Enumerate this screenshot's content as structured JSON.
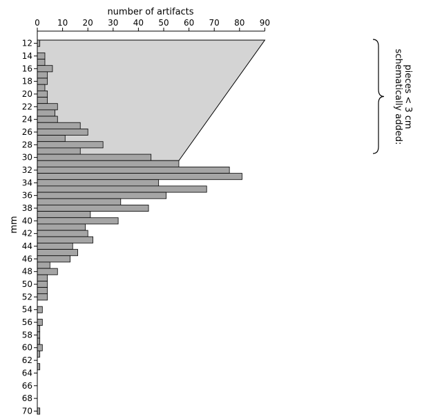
{
  "chart_data": {
    "type": "bar",
    "orientation": "horizontal",
    "xlabel": "number of artifacts",
    "ylabel": "mm",
    "xlim": [
      0,
      90
    ],
    "x_ticks": [
      0,
      10,
      20,
      30,
      40,
      50,
      60,
      70,
      80,
      90
    ],
    "x_axis_position": "top",
    "y_ticks": [
      12,
      14,
      16,
      18,
      20,
      22,
      24,
      26,
      28,
      30,
      32,
      34,
      36,
      38,
      40,
      42,
      44,
      46,
      48,
      50,
      52,
      54,
      56,
      58,
      60,
      62,
      64,
      66,
      68,
      70
    ],
    "grid": false,
    "categories": [
      12,
      13,
      14,
      15,
      16,
      17,
      18,
      19,
      20,
      21,
      22,
      23,
      24,
      25,
      26,
      27,
      28,
      29,
      30,
      31,
      32,
      33,
      34,
      35,
      36,
      37,
      38,
      39,
      40,
      41,
      42,
      43,
      44,
      45,
      46,
      47,
      48,
      49,
      50,
      51,
      52,
      53,
      54,
      55,
      56,
      57,
      58,
      59,
      60,
      61,
      62,
      63,
      64,
      65,
      66,
      67,
      68,
      69,
      70
    ],
    "values": [
      1,
      0,
      3,
      3,
      6,
      4,
      4,
      3,
      4,
      4,
      8,
      7,
      8,
      17,
      20,
      11,
      26,
      17,
      45,
      56,
      76,
      81,
      48,
      67,
      51,
      33,
      44,
      21,
      32,
      19,
      20,
      22,
      14,
      16,
      13,
      5,
      8,
      4,
      4,
      4,
      4,
      0,
      2,
      0,
      2,
      1,
      1,
      1,
      2,
      1,
      0,
      1,
      0,
      0,
      0,
      0,
      0,
      0,
      1
    ],
    "schematic_region": {
      "color": "#d4d4d4",
      "peak_value": 90,
      "peak_mm": 12,
      "end_value": 56,
      "end_mm": 30
    },
    "annotation": {
      "lines": [
        "schematically added:",
        "pieces < 3 cm"
      ]
    },
    "bar_color": "#a5a5a5"
  }
}
